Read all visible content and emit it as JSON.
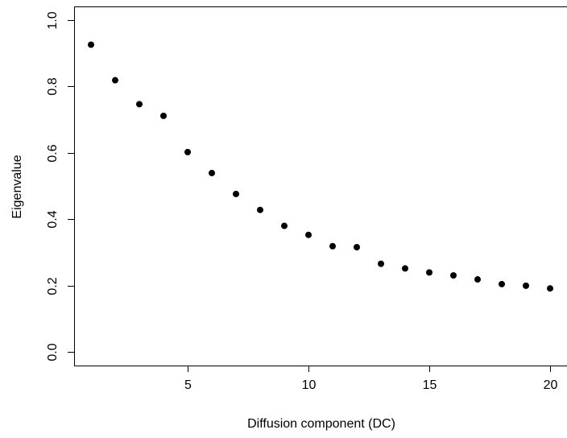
{
  "chart_data": {
    "type": "scatter",
    "title": "",
    "xlabel": "Diffusion component (DC)",
    "ylabel": "Eigenvalue",
    "xlim": [
      0.3,
      20.7
    ],
    "ylim": [
      -0.04,
      1.04
    ],
    "xticks": [
      5,
      10,
      15,
      20
    ],
    "yticks": [
      0.0,
      0.2,
      0.4,
      0.6,
      0.8,
      1.0
    ],
    "xtick_labels": [
      "5",
      "10",
      "15",
      "20"
    ],
    "ytick_labels": [
      "0.0",
      "0.2",
      "0.4",
      "0.6",
      "0.8",
      "1.0"
    ],
    "grid": false,
    "point_color": "#000000",
    "series": [
      {
        "x": [
          1,
          2,
          3,
          4,
          5,
          6,
          7,
          8,
          9,
          10,
          11,
          12,
          13,
          14,
          15,
          16,
          17,
          18,
          19,
          20
        ],
        "y": [
          0.925,
          0.818,
          0.746,
          0.711,
          0.602,
          0.539,
          0.476,
          0.428,
          0.38,
          0.353,
          0.319,
          0.316,
          0.266,
          0.252,
          0.24,
          0.231,
          0.219,
          0.205,
          0.2,
          0.192
        ]
      }
    ]
  }
}
